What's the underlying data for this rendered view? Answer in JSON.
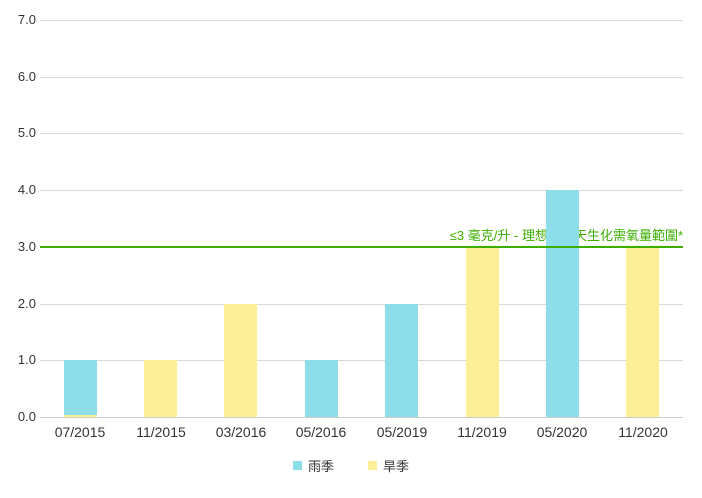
{
  "chart_data": {
    "type": "bar",
    "title": "",
    "xlabel": "",
    "ylabel": "",
    "categories": [
      "07/2015",
      "11/2015",
      "03/2016",
      "05/2016",
      "05/2019",
      "11/2019",
      "05/2020",
      "11/2020"
    ],
    "series": [
      {
        "name": "雨季",
        "color": "#8DDEE8"
      },
      {
        "name": "旱季",
        "color": "#FDEE98"
      }
    ],
    "points": [
      {
        "category": "07/2015",
        "series": "雨季",
        "value": 1.0
      },
      {
        "category": "07/2015",
        "series": "旱季",
        "value": 0.03
      },
      {
        "category": "11/2015",
        "series": "旱季",
        "value": 1.0
      },
      {
        "category": "03/2016",
        "series": "旱季",
        "value": 2.0
      },
      {
        "category": "05/2016",
        "series": "雨季",
        "value": 1.0
      },
      {
        "category": "05/2019",
        "series": "雨季",
        "value": 2.0
      },
      {
        "category": "11/2019",
        "series": "旱季",
        "value": 3.0
      },
      {
        "category": "05/2020",
        "series": "雨季",
        "value": 4.0
      },
      {
        "category": "11/2020",
        "series": "旱季",
        "value": 3.0
      }
    ],
    "threshold": {
      "value": 3.0,
      "label": "≤3 毫克/升 - 理想的五天生化需氧量範圍*",
      "color": "#3BAE00"
    },
    "yaxis": {
      "min": 0,
      "max": 7,
      "step": 1,
      "tick_labels": [
        "0.0",
        "1.0",
        "2.0",
        "3.0",
        "4.0",
        "5.0",
        "6.0",
        "7.0"
      ]
    },
    "grid": true,
    "legend_position": "bottom",
    "colors": {
      "gridline": "#D9D9D9",
      "axis_line": "#CCCCCC",
      "tick_label": "#333333"
    }
  }
}
